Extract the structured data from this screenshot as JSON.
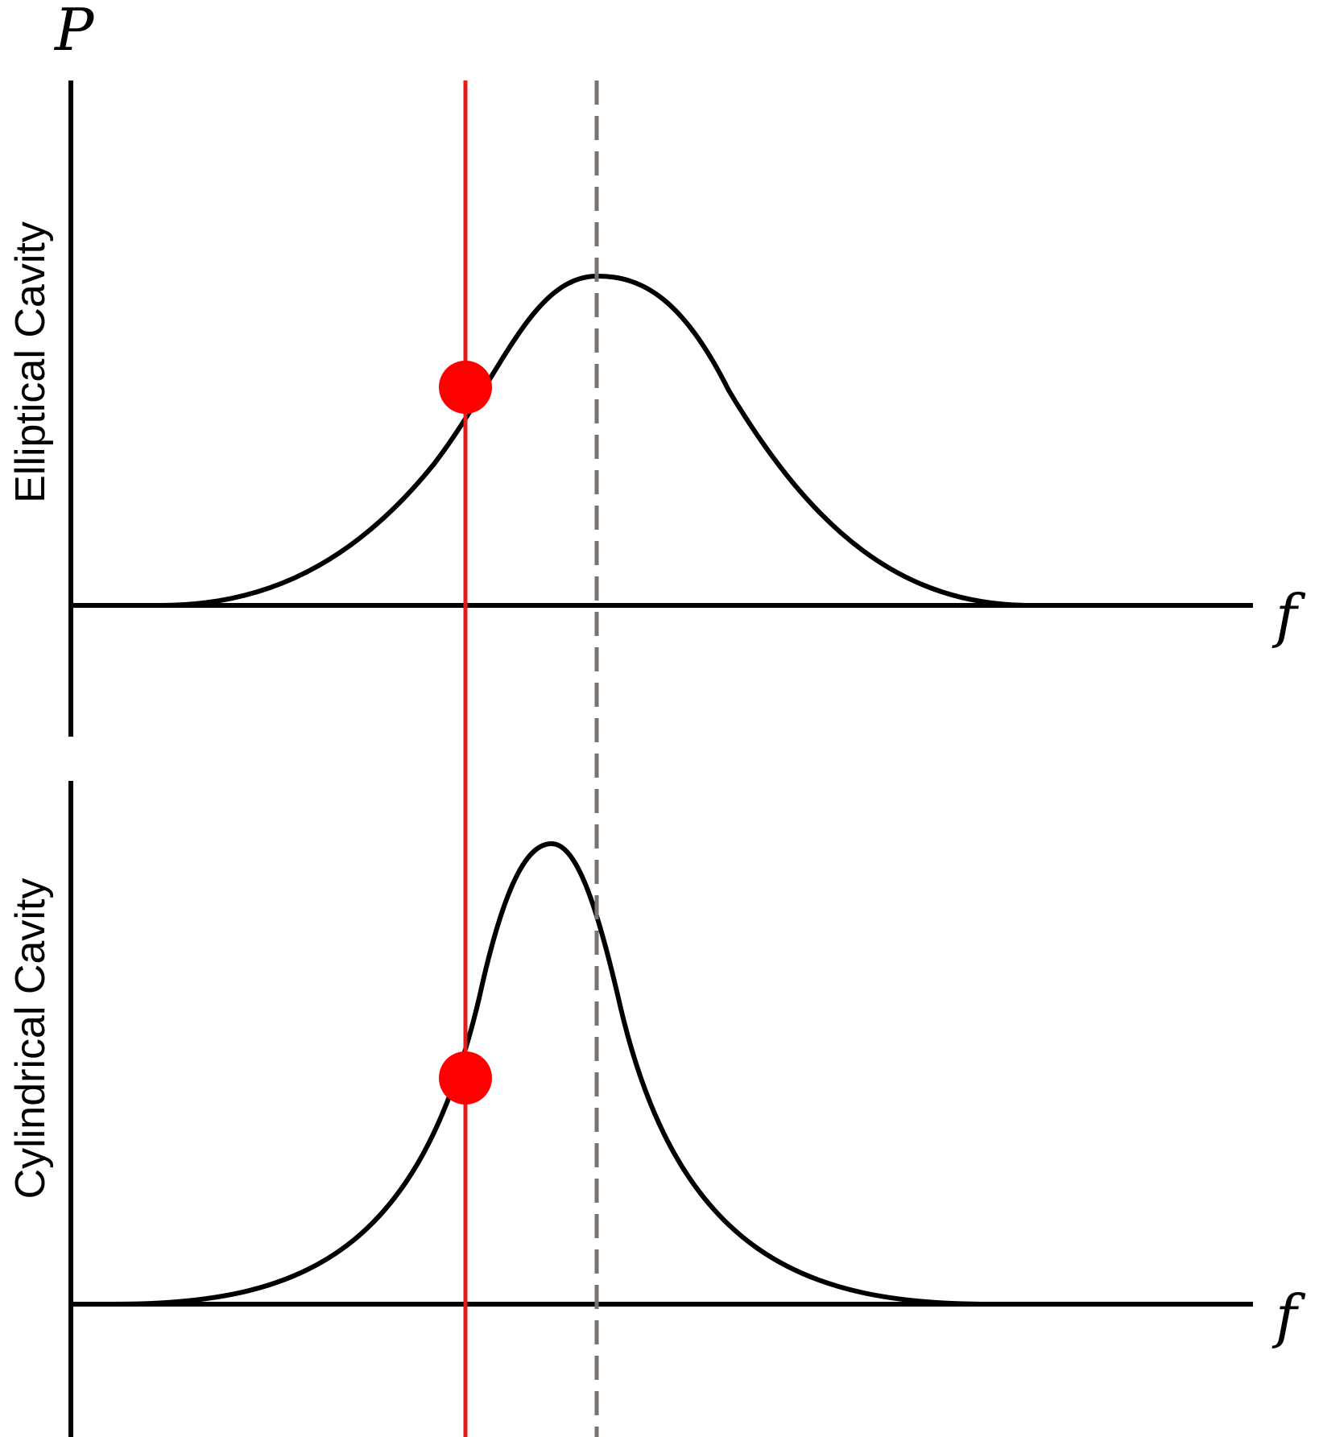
{
  "y_axis_label": "P",
  "x_axis_label": "f",
  "panels": [
    {
      "label": "Elliptical Cavity"
    },
    {
      "label": "Cylindrical Cavity"
    }
  ],
  "colors": {
    "curve": "#000000",
    "drive_line": "#e61a1a",
    "marker": "#ff0000",
    "resonance_line": "#7a726c"
  }
}
